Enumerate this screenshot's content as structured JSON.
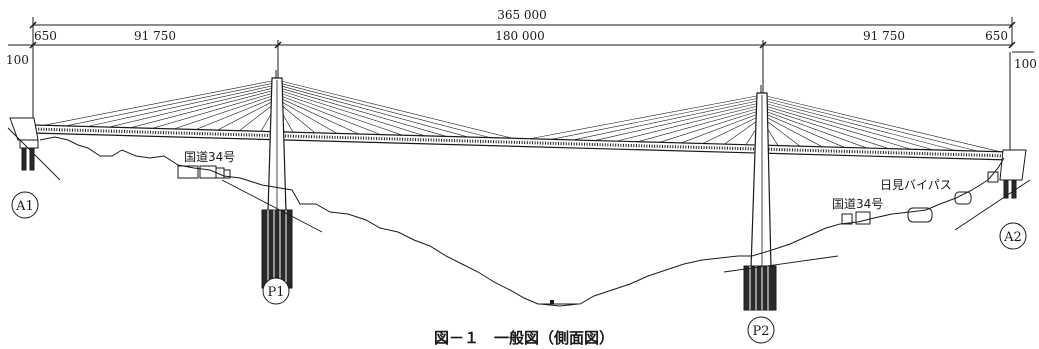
{
  "dimensions": {
    "total": "365 000",
    "left_edge": "650",
    "left_side_span": "91 750",
    "center_span": "180 000",
    "right_side_span": "91 750",
    "right_edge": "650",
    "left_offset": "100",
    "right_offset": "100"
  },
  "supports": {
    "a1": "A1",
    "p1": "P1",
    "p2": "P2",
    "a2": "A2"
  },
  "roads": {
    "route34_left": "国道34号",
    "route34_right": "国道34号",
    "bypass": "日見バイパス"
  },
  "caption": "図－１　一般図（側面図）",
  "colors": {
    "ink": "#1a1a1a",
    "background": "#ffffff"
  }
}
